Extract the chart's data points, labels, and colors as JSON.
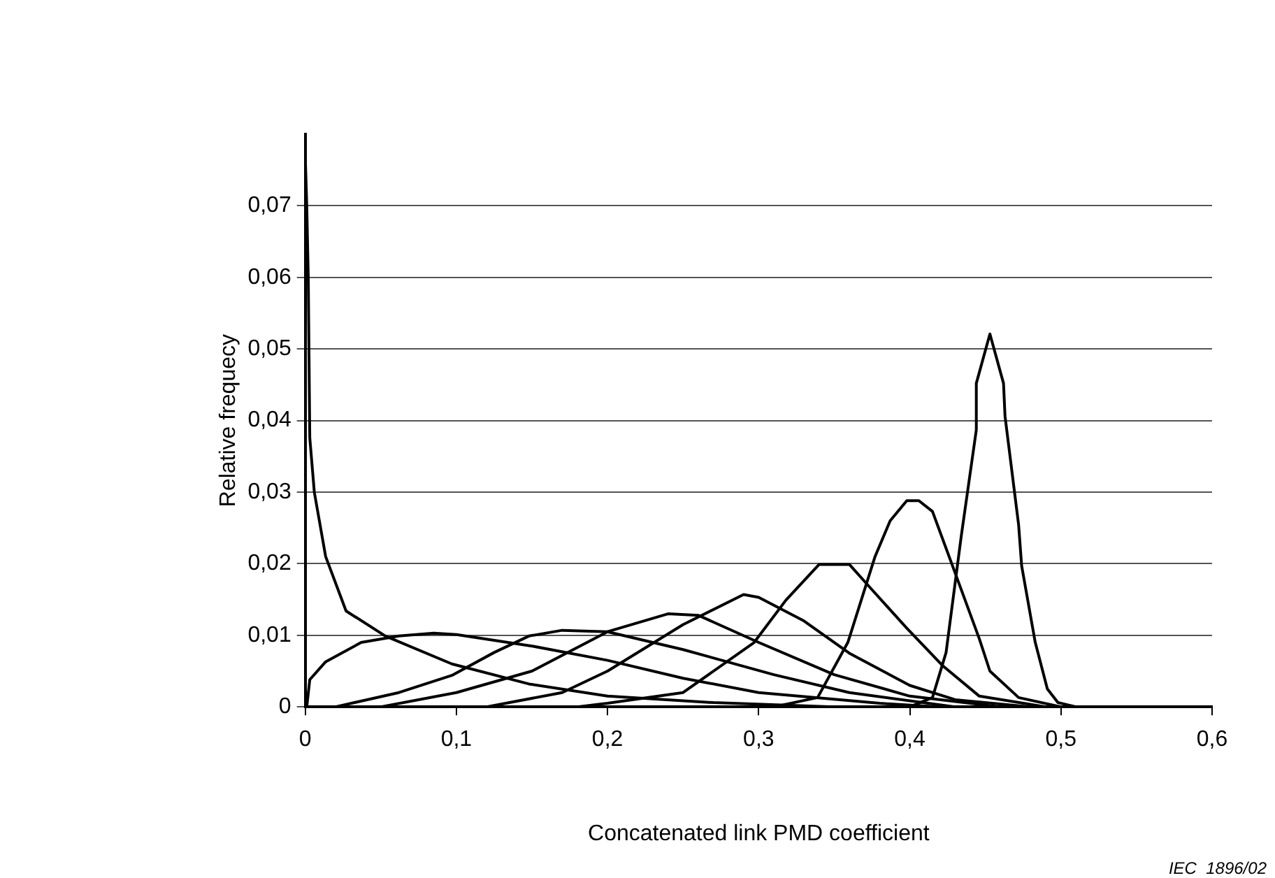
{
  "chart_data": {
    "type": "line",
    "xlabel": "Concatenated link PMD coefficient",
    "ylabel": "Relative frequecy",
    "annotations": [
      "IEC  1896/02"
    ],
    "xlim": [
      0,
      0.6
    ],
    "xticks": [
      0,
      {
        "value": 0.1,
        "label": "0,1"
      },
      {
        "value": 0.2,
        "label": "0,2"
      },
      {
        "value": 0.3,
        "label": "0,3"
      },
      {
        "value": 0.4,
        "label": "0,4"
      },
      {
        "value": 0.5,
        "label": "0,5"
      },
      {
        "value": 0.6,
        "label": "0,6"
      }
    ],
    "ylim": [
      0,
      0.08
    ],
    "yticks": [
      0,
      {
        "value": 0.01,
        "label": "0,01"
      },
      {
        "value": 0.02,
        "label": "0,02"
      },
      {
        "value": 0.03,
        "label": "0,03"
      },
      {
        "value": 0.04,
        "label": "0,04"
      },
      {
        "value": 0.05,
        "label": "0,05"
      },
      {
        "value": 0.06,
        "label": "0,06"
      },
      {
        "value": 0.07,
        "label": "0,07"
      }
    ],
    "grid": "y",
    "legend": false,
    "marker": "none",
    "line_style": "solid",
    "series": [
      {
        "color": "#000000",
        "x": [
          0,
          0.001,
          0.002,
          0.003,
          0.006,
          0.0135,
          0.027,
          0.053,
          0.097,
          0.148,
          0.2,
          0.27,
          0.35
        ],
        "values": [
          0.077,
          0.07,
          0.06,
          0.0376,
          0.03,
          0.021,
          0.0134,
          0.0099,
          0.006,
          0.0032,
          0.0015,
          0.0006,
          0
        ]
      },
      {
        "color": "#000000",
        "x": [
          0.001,
          0.003,
          0.0135,
          0.037,
          0.062,
          0.085,
          0.1,
          0.15,
          0.2,
          0.25,
          0.3,
          0.38,
          0.42
        ],
        "values": [
          0,
          0.0038,
          0.0063,
          0.009,
          0.0099,
          0.0103,
          0.0101,
          0.0085,
          0.0065,
          0.004,
          0.002,
          0.0005,
          0
        ]
      },
      {
        "color": "#000000",
        "x": [
          0.02,
          0.062,
          0.097,
          0.125,
          0.148,
          0.17,
          0.2,
          0.25,
          0.31,
          0.36,
          0.43
        ],
        "values": [
          0,
          0.002,
          0.0044,
          0.0076,
          0.0099,
          0.0107,
          0.0105,
          0.008,
          0.0045,
          0.002,
          0
        ]
      },
      {
        "color": "#000000",
        "x": [
          0.05,
          0.1,
          0.15,
          0.2,
          0.24,
          0.26,
          0.3,
          0.35,
          0.4,
          0.46
        ],
        "values": [
          0,
          0.002,
          0.005,
          0.0105,
          0.013,
          0.0128,
          0.009,
          0.0045,
          0.0015,
          0
        ]
      },
      {
        "color": "#000000",
        "x": [
          0.12,
          0.17,
          0.2,
          0.25,
          0.29,
          0.3,
          0.33,
          0.36,
          0.4,
          0.43,
          0.48
        ],
        "values": [
          0,
          0.002,
          0.005,
          0.0115,
          0.0157,
          0.0153,
          0.012,
          0.0075,
          0.003,
          0.001,
          0
        ]
      },
      {
        "color": "#000000",
        "x": [
          0.18,
          0.2,
          0.25,
          0.297,
          0.318,
          0.34,
          0.36,
          0.374,
          0.398,
          0.422,
          0.446,
          0.49
        ],
        "values": [
          0,
          0.0005,
          0.002,
          0.009,
          0.0149,
          0.0199,
          0.0199,
          0.0166,
          0.011,
          0.0057,
          0.0015,
          0
        ]
      },
      {
        "color": "#000000",
        "x": [
          0.31,
          0.339,
          0.359,
          0.377,
          0.387,
          0.398,
          0.406,
          0.415,
          0.426,
          0.446,
          0.453,
          0.472,
          0.5
        ],
        "values": [
          0,
          0.0013,
          0.009,
          0.021,
          0.026,
          0.0288,
          0.0288,
          0.0273,
          0.021,
          0.0095,
          0.005,
          0.0013,
          0
        ]
      },
      {
        "color": "#000000",
        "x": [
          0.4,
          0.415,
          0.424,
          0.434,
          0.444,
          0.444,
          0.453,
          0.462,
          0.463,
          0.472,
          0.474,
          0.483,
          0.491,
          0.498,
          0.51
        ],
        "values": [
          0,
          0.0013,
          0.0076,
          0.0238,
          0.0387,
          0.0452,
          0.0521,
          0.0452,
          0.0406,
          0.0254,
          0.0197,
          0.009,
          0.0025,
          0.0006,
          0
        ]
      }
    ]
  }
}
